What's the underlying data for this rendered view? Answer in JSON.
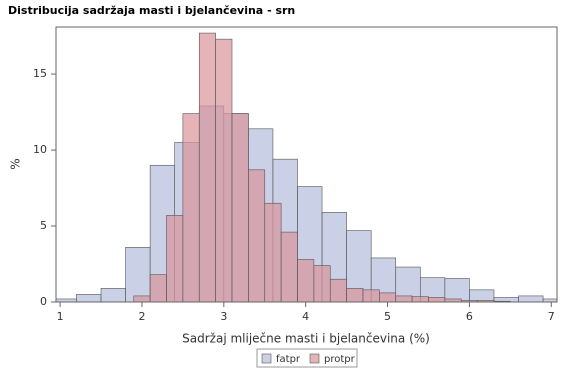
{
  "chart_data": {
    "type": "histogram",
    "title": "Distribucija sadržaja masti i bjelančevina - srn",
    "x_label": "Sadržaj mliječne masti i bjelančevina (%)",
    "y_label": "%",
    "xlim": [
      0.95,
      7.07
    ],
    "ylim": [
      0,
      18.1
    ],
    "xticks": [
      1,
      2,
      3,
      4,
      5,
      6,
      7
    ],
    "yticks": [
      0,
      5,
      10,
      15
    ],
    "grid": false,
    "legend": "bottom",
    "series": [
      {
        "name": "fatpr",
        "color": "#b3bcdb",
        "bins": [
          0.9,
          1.2,
          1.5,
          1.8,
          2.1,
          2.4,
          2.7,
          3.0,
          3.3,
          3.6,
          3.9,
          4.2,
          4.5,
          4.8,
          5.1,
          5.4,
          5.7,
          6.0,
          6.3,
          6.6,
          6.9,
          7.2
        ],
        "values": [
          0.2,
          0.5,
          0.9,
          3.6,
          9.0,
          10.5,
          12.9,
          12.4,
          11.4,
          9.4,
          7.6,
          5.9,
          4.7,
          2.9,
          2.3,
          1.6,
          1.55,
          0.8,
          0.3,
          0.4,
          0.2
        ]
      },
      {
        "name": "protpr",
        "color": "#d9949b",
        "bins": [
          1.9,
          2.1,
          2.3,
          2.5,
          2.7,
          2.9,
          3.1,
          3.3,
          3.5,
          3.7,
          3.9,
          4.1,
          4.3,
          4.5,
          4.7,
          4.9,
          5.1,
          5.3,
          5.5,
          5.7,
          5.9,
          6.1,
          6.3,
          6.5
        ],
        "values": [
          0.4,
          1.8,
          5.7,
          12.4,
          17.7,
          17.3,
          12.4,
          8.7,
          6.5,
          4.6,
          2.8,
          2.4,
          1.5,
          0.9,
          0.8,
          0.6,
          0.4,
          0.35,
          0.3,
          0.2,
          0.1,
          0.1,
          0.05
        ]
      }
    ]
  }
}
